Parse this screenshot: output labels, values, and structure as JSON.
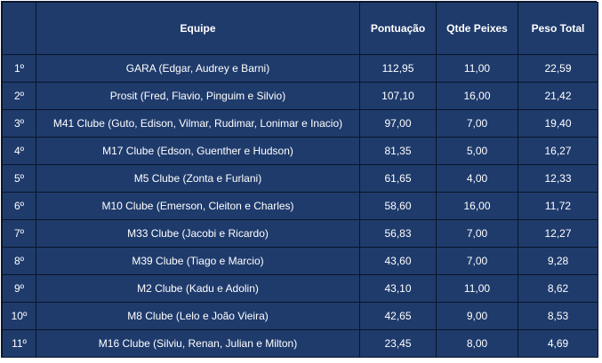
{
  "columns": {
    "position": "",
    "team": "Equipe",
    "score": "Pontuação",
    "fish_count": "Qtde Peixes",
    "total_weight": "Peso Total"
  },
  "rows": [
    {
      "position": "1º",
      "team": "GARA (Edgar, Audrey e Barni)",
      "score": "112,95",
      "fish_count": "11,00",
      "total_weight": "22,59"
    },
    {
      "position": "2º",
      "team": "Prosit (Fred, Flavio, Pinguim e Silvio)",
      "score": "107,10",
      "fish_count": "16,00",
      "total_weight": "21,42"
    },
    {
      "position": "3º",
      "team": "M41 Clube (Guto, Edison, Vilmar, Rudimar, Lonimar e Inacio)",
      "score": "97,00",
      "fish_count": "7,00",
      "total_weight": "19,40"
    },
    {
      "position": "4º",
      "team": "M17 Clube (Edson, Guenther e Hudson)",
      "score": "81,35",
      "fish_count": "5,00",
      "total_weight": "16,27"
    },
    {
      "position": "5º",
      "team": "M5 Clube (Zonta e Furlani)",
      "score": "61,65",
      "fish_count": "4,00",
      "total_weight": "12,33"
    },
    {
      "position": "6º",
      "team": "M10 Clube (Emerson, Cleiton e Charles)",
      "score": "58,60",
      "fish_count": "16,00",
      "total_weight": "11,72"
    },
    {
      "position": "7º",
      "team": "M33 Clube (Jacobi e Ricardo)",
      "score": "56,83",
      "fish_count": "7,00",
      "total_weight": "12,27"
    },
    {
      "position": "8º",
      "team": "M39 Clube (Tiago e Marcio)",
      "score": "43,60",
      "fish_count": "7,00",
      "total_weight": "9,28"
    },
    {
      "position": "9º",
      "team": "M2 Clube (Kadu e Adolin)",
      "score": "43,10",
      "fish_count": "11,00",
      "total_weight": "8,62"
    },
    {
      "position": "10º",
      "team": "M8 Clube (Lelo e João Vieira)",
      "score": "42,65",
      "fish_count": "9,00",
      "total_weight": "8,53"
    },
    {
      "position": "11º",
      "team": "M16 Clube (Silviu, Renan, Julian e Milton)",
      "score": "23,45",
      "fish_count": "8,00",
      "total_weight": "4,69"
    }
  ],
  "colors": {
    "cell_background": "#1f3b6c",
    "grid_lines": "#0a1428",
    "text": "#ffffff"
  }
}
